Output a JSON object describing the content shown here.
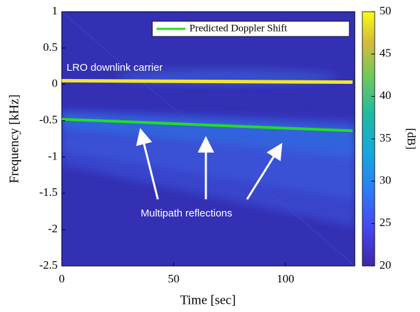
{
  "chart_data": {
    "type": "spectrogram",
    "xlabel": "Time [sec]",
    "ylabel": "Frequency [kHz]",
    "xlim": [
      0,
      131
    ],
    "ylim": [
      -2.5,
      1
    ],
    "xticks": [
      0,
      50,
      100
    ],
    "yticks": [
      1,
      0.5,
      0,
      -0.5,
      -1,
      -1.5,
      -2,
      -2.5
    ],
    "grid": false,
    "legend": "upper right",
    "series": [
      {
        "name": "Predicted Doppler Shift",
        "color": "#22dd22",
        "x": [
          0,
          130
        ],
        "values": [
          -0.48,
          -0.64
        ]
      }
    ],
    "carrier": {
      "color": "#f2e62e",
      "x": [
        0,
        130
      ],
      "values": [
        0.05,
        0.03
      ]
    },
    "annotations": [
      "LRO downlink carrier",
      "Multipath reflections"
    ],
    "colorbar": {
      "label": "[dB]",
      "lim": [
        20,
        50
      ],
      "ticks": [
        20,
        25,
        30,
        35,
        40,
        45,
        50
      ]
    }
  }
}
